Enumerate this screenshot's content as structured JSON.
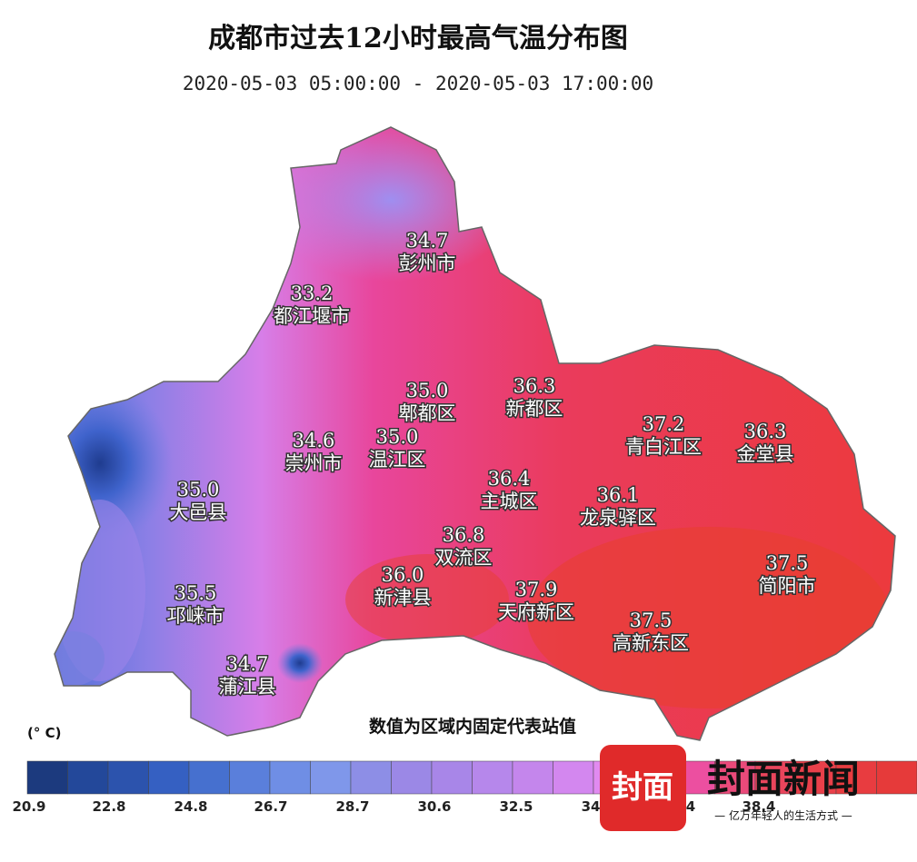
{
  "header": {
    "title": "成都市过去12小时最高气温分布图",
    "subtitle": "2020-05-03 05:00:00 - 2020-05-03 17:00:00"
  },
  "regions": [
    {
      "value": "34.7",
      "name": "彭州市"
    },
    {
      "value": "33.2",
      "name": "都江堰市"
    },
    {
      "value": "35.0",
      "name": "郫都区"
    },
    {
      "value": "36.3",
      "name": "新都区"
    },
    {
      "value": "37.2",
      "name": "青白江区"
    },
    {
      "value": "36.3",
      "name": "金堂县"
    },
    {
      "value": "34.6",
      "name": "崇州市"
    },
    {
      "value": "35.0",
      "name": "温江区"
    },
    {
      "value": "36.4",
      "name": "主城区"
    },
    {
      "value": "36.1",
      "name": "龙泉驿区"
    },
    {
      "value": "35.0",
      "name": "大邑县"
    },
    {
      "value": "36.8",
      "name": "双流区"
    },
    {
      "value": "36.0",
      "name": "新津县"
    },
    {
      "value": "37.9",
      "name": "天府新区"
    },
    {
      "value": "37.5",
      "name": "简阳市"
    },
    {
      "value": "35.5",
      "name": "邛崃市"
    },
    {
      "value": "37.5",
      "name": "高新东区"
    },
    {
      "value": "34.7",
      "name": "蒲江县"
    }
  ],
  "note": "数值为区域内固定代表站值",
  "legend": {
    "unit": "(° C)",
    "ticks": [
      "20.9",
      "22.8",
      "24.8",
      "26.7",
      "28.7",
      "30.6",
      "32.5",
      "34",
      "4",
      "38.4"
    ]
  },
  "watermark": {
    "logo": "封面",
    "brand": "封面新闻",
    "slogan": "— 亿万年轻人的生活方式 —"
  }
}
